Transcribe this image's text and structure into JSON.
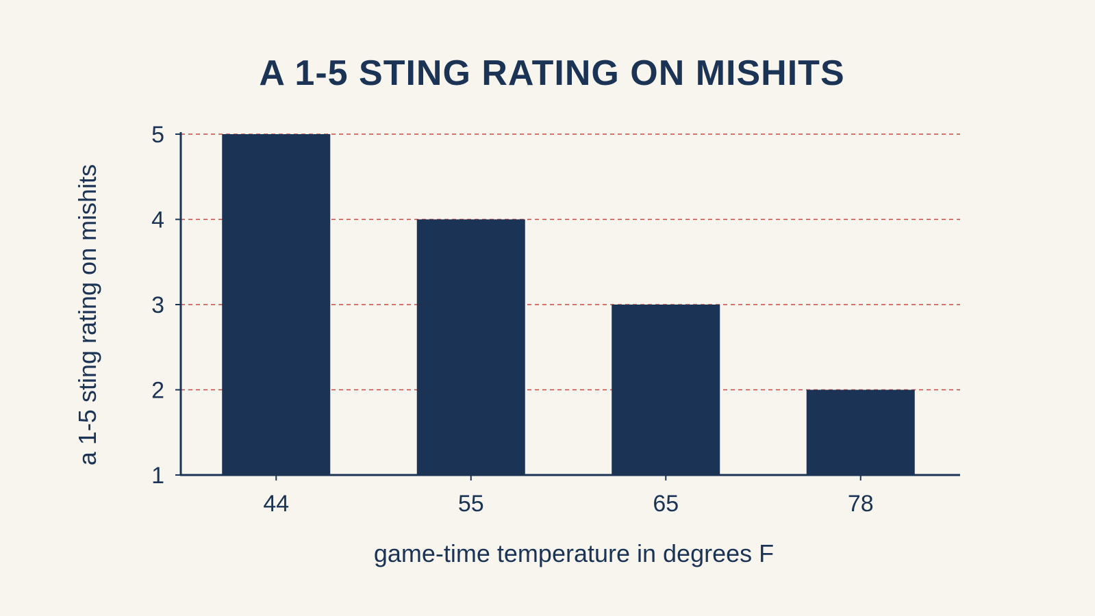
{
  "chart_data": {
    "type": "bar",
    "title": "A 1-5 STING RATING ON MISHITS",
    "xlabel": "game-time temperature in degrees F",
    "ylabel": "a 1-5 sting rating on mishits",
    "categories": [
      "44",
      "55",
      "65",
      "78"
    ],
    "values": [
      5,
      4,
      3,
      2
    ],
    "ylim": [
      1,
      5
    ],
    "yticks": [
      "1",
      "2",
      "3",
      "4",
      "5"
    ],
    "grid": true,
    "colors": {
      "bar": "#1b3354",
      "grid": "#c9463d",
      "axis": "#1b3354",
      "text": "#1b3354",
      "background": "#f8f5ef"
    }
  }
}
